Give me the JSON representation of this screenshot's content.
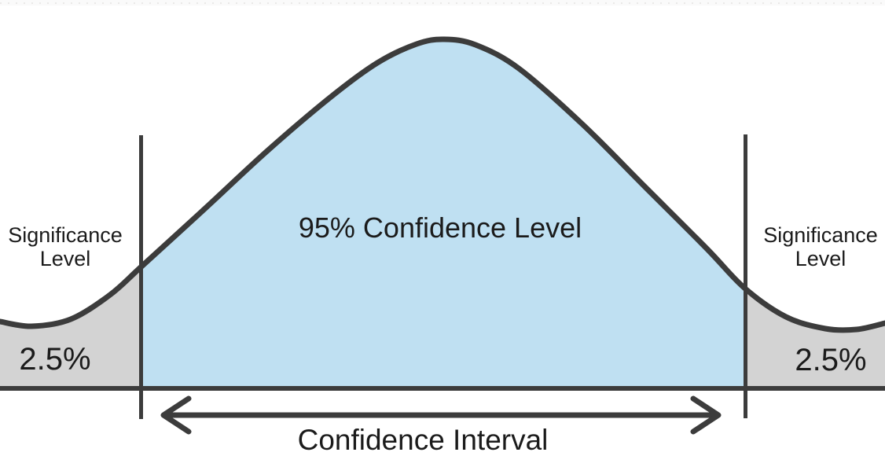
{
  "diagram": {
    "center_label": "95% Confidence Level",
    "significance_label_line1": "Significance",
    "significance_label_line2": "Level",
    "left_tail_value": "2.5%",
    "right_tail_value": "2.5%",
    "interval_label": "Confidence Interval"
  },
  "colors": {
    "curve_stroke": "#3c3c3c",
    "confidence_fill": "#bfe0f2",
    "significance_fill": "#d3d3d3",
    "axis": "#3c3c3c",
    "text": "#1b1b1b",
    "background": "#ffffff",
    "top_strip": "#fafafa",
    "top_strip_dots": "#e5e3e1"
  }
}
